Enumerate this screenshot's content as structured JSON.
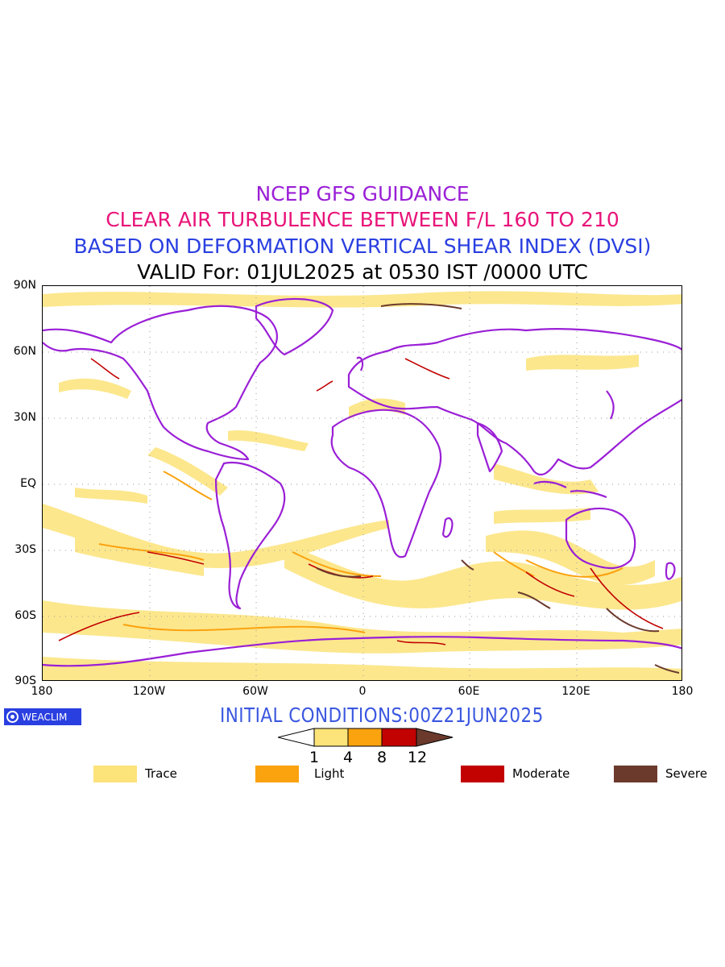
{
  "header": {
    "line1": "NCEP GFS GUIDANCE",
    "line2": "CLEAR AIR TURBULENCE BETWEEN F/L 160 TO 210",
    "line3": "BASED ON DEFORMATION VERTICAL SHEAR INDEX (DVSI)",
    "line4": "VALID For: 01JUL2025 at 0530 IST /0000 UTC"
  },
  "axes": {
    "lat_labels": [
      "90N",
      "60N",
      "30N",
      "EQ",
      "30S",
      "60S",
      "90S"
    ],
    "lon_labels": [
      "180",
      "120W",
      "60W",
      "0",
      "60E",
      "120E",
      "180"
    ]
  },
  "init_conditions": "INITIAL CONDITIONS:00Z21JUN2025",
  "logo": {
    "text": "WEACLIM",
    "icon": "weaclim-logo-icon"
  },
  "colorbar": {
    "ticks": [
      "1",
      "4",
      "8",
      "12"
    ],
    "colors": [
      "#ffffff",
      "#fce37a",
      "#fba20f",
      "#c20101",
      "#6b3a2c"
    ]
  },
  "legend": [
    {
      "label": "Trace",
      "color": "#fce37a"
    },
    {
      "label": "Light",
      "color": "#fba20f"
    },
    {
      "label": "Moderate",
      "color": "#c20101"
    },
    {
      "label": "Severe",
      "color": "#6b3a2c"
    }
  ],
  "colors": {
    "coastline": "#9a1fd6",
    "grid": "#9a9a9a"
  }
}
